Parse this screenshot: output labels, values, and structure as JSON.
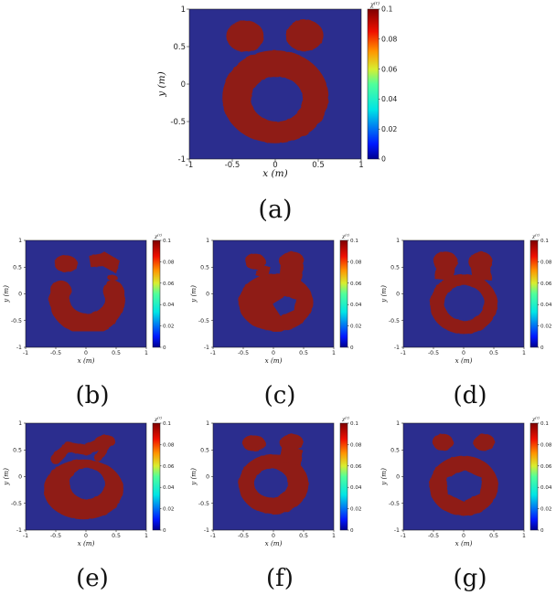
{
  "figure": {
    "background": "#ffffff",
    "colors": {
      "field": "#2b2d8e",
      "object": "#8f1e16",
      "text": "#1a1a1a"
    },
    "colormap": "jet",
    "colormap_stops": [
      [
        0,
        "#00008f"
      ],
      [
        0.1,
        "#0018ff"
      ],
      [
        0.33,
        "#00e5e5"
      ],
      [
        0.5,
        "#50ff9b"
      ],
      [
        0.6,
        "#d8ee30"
      ],
      [
        0.72,
        "#ff9400"
      ],
      [
        0.85,
        "#f01000"
      ],
      [
        1,
        "#7f0000"
      ]
    ]
  },
  "chart_data": [
    {
      "id": "a",
      "type": "heatmap",
      "caption": "(a)",
      "xlabel": "x (m)",
      "ylabel": "y (m)",
      "xlim": [
        -1,
        1
      ],
      "ylim": [
        -1,
        1
      ],
      "xticks": [
        "-1",
        "-0.5",
        "0",
        "0.5",
        "1"
      ],
      "yticks": [
        "1",
        "0.5",
        "0",
        "-0.5",
        "-1"
      ],
      "colorbar": {
        "label_base": "χ",
        "label_sup": "(r)",
        "ticks": [
          "0",
          "0.02",
          "0.04",
          "0.06",
          "0.08",
          "0.1"
        ],
        "min": 0,
        "max": 0.1
      },
      "field_value": 0,
      "object_value": 0.1,
      "shapes": [
        {
          "t": "annulus",
          "cx": 0,
          "cy": -0.17,
          "rox": 0.62,
          "roy": 0.62,
          "hx": 0.02,
          "hy": -0.2,
          "rix": 0.3,
          "riy": 0.3
        },
        {
          "t": "ellipse",
          "cx": -0.35,
          "cy": 0.64,
          "rx": 0.22,
          "ry": 0.21
        },
        {
          "t": "ellipse",
          "cx": 0.34,
          "cy": 0.65,
          "rx": 0.22,
          "ry": 0.21
        }
      ]
    },
    {
      "id": "b",
      "type": "heatmap",
      "caption": "(b)",
      "xlabel": "x (m)",
      "ylabel": "y (m)",
      "xlim": [
        -1,
        1
      ],
      "ylim": [
        -1,
        1
      ],
      "xticks": [
        "-1",
        "-0.5",
        "0",
        "0.5",
        "1"
      ],
      "yticks": [
        "1",
        "0.5",
        "0",
        "-0.5",
        "-1"
      ],
      "colorbar": {
        "label_base": "χ",
        "label_sup": "(r)",
        "ticks": [
          "0",
          "0.02",
          "0.04",
          "0.06",
          "0.08",
          "0.1"
        ],
        "min": 0,
        "max": 0.1
      },
      "field_value": 0,
      "object_value": 0.1,
      "shapes": [
        {
          "t": "ringArc",
          "cx": 0.02,
          "cy": -0.1,
          "r": 0.46,
          "a0": 160,
          "a1": 20,
          "w": 0.34,
          "large": 1,
          "sweep": 0
        },
        {
          "t": "ellipse",
          "cx": -0.33,
          "cy": 0.56,
          "rx": 0.19,
          "ry": 0.16
        },
        {
          "t": "poly",
          "pts": [
            [
              0.05,
              0.72
            ],
            [
              0.32,
              0.78
            ],
            [
              0.56,
              0.62
            ],
            [
              0.5,
              0.38
            ],
            [
              0.28,
              0.52
            ],
            [
              0.08,
              0.5
            ]
          ]
        },
        {
          "t": "ellipse",
          "cx": 0.44,
          "cy": 0.3,
          "rx": 0.08,
          "ry": 0.06
        }
      ]
    },
    {
      "id": "c",
      "type": "heatmap",
      "caption": "(c)",
      "xlabel": "x (m)",
      "ylabel": "y (m)",
      "xlim": [
        -1,
        1
      ],
      "ylim": [
        -1,
        1
      ],
      "xticks": [
        "-1",
        "-0.5",
        "0",
        "0.5",
        "1"
      ],
      "yticks": [
        "1",
        "0.5",
        "0",
        "-0.5",
        "-1"
      ],
      "colorbar": {
        "label_base": "χ",
        "label_sup": "(r)",
        "ticks": [
          "0",
          "0.02",
          "0.04",
          "0.06",
          "0.08",
          "0.1"
        ],
        "min": 0,
        "max": 0.1
      },
      "field_value": 0,
      "object_value": 0.1,
      "shapes": [
        {
          "t": "ellipse",
          "cx": 0.04,
          "cy": -0.16,
          "rx": 0.62,
          "ry": 0.54
        },
        {
          "t": "ellipse",
          "cx": -0.3,
          "cy": 0.6,
          "rx": 0.17,
          "ry": 0.15
        },
        {
          "t": "ellipse",
          "cx": 0.3,
          "cy": 0.62,
          "rx": 0.21,
          "ry": 0.17
        },
        {
          "t": "poly",
          "pts": [
            [
              0.12,
              0.55
            ],
            [
              0.5,
              0.55
            ],
            [
              0.45,
              0.2
            ],
            [
              0.1,
              0.3
            ]
          ]
        },
        {
          "t": "poly",
          "pts": [
            [
              -0.22,
              0.55
            ],
            [
              -0.05,
              0.5
            ],
            [
              -0.1,
              0.28
            ],
            [
              -0.3,
              0.35
            ]
          ]
        },
        {
          "t": "hole",
          "pts": [
            [
              -0.02,
              -0.18
            ],
            [
              0.18,
              -0.04
            ],
            [
              0.38,
              -0.1
            ],
            [
              0.35,
              -0.3
            ],
            [
              0.12,
              -0.42
            ]
          ]
        }
      ]
    },
    {
      "id": "d",
      "type": "heatmap",
      "caption": "(d)",
      "xlabel": "x (m)",
      "ylabel": "y (m)",
      "xlim": [
        -1,
        1
      ],
      "ylim": [
        -1,
        1
      ],
      "xticks": [
        "-1",
        "-0.5",
        "0",
        "0.5",
        "1"
      ],
      "yticks": [
        "1",
        "0.5",
        "0",
        "-0.5",
        "-1"
      ],
      "colorbar": {
        "label_base": "χ",
        "label_sup": "(r)",
        "ticks": [
          "0",
          "0.02",
          "0.04",
          "0.06",
          "0.08",
          "0.1"
        ],
        "min": 0,
        "max": 0.1
      },
      "field_value": 0,
      "object_value": 0.1,
      "shapes": [
        {
          "t": "annulus",
          "cx": 0,
          "cy": -0.19,
          "rox": 0.56,
          "roy": 0.56,
          "hx": 0.01,
          "hy": -0.17,
          "rix": 0.33,
          "riy": 0.33
        },
        {
          "t": "ellipse",
          "cx": -0.3,
          "cy": 0.6,
          "rx": 0.2,
          "ry": 0.19
        },
        {
          "t": "ellipse",
          "cx": 0.28,
          "cy": 0.6,
          "rx": 0.2,
          "ry": 0.19
        },
        {
          "t": "poly",
          "pts": [
            [
              -0.45,
              0.5
            ],
            [
              -0.14,
              0.5
            ],
            [
              -0.18,
              0.25
            ],
            [
              -0.48,
              0.28
            ]
          ]
        },
        {
          "t": "poly",
          "pts": [
            [
              0.12,
              0.5
            ],
            [
              0.44,
              0.5
            ],
            [
              0.47,
              0.25
            ],
            [
              0.15,
              0.25
            ]
          ]
        }
      ]
    },
    {
      "id": "e",
      "type": "heatmap",
      "caption": "(e)",
      "xlabel": "x (m)",
      "ylabel": "y (m)",
      "xlim": [
        -1,
        1
      ],
      "ylim": [
        -1,
        1
      ],
      "xticks": [
        "-1",
        "-0.5",
        "0",
        "0.5",
        "1"
      ],
      "yticks": [
        "1",
        "0.5",
        "0",
        "-0.5",
        "-1"
      ],
      "colorbar": {
        "label_base": "χ",
        "label_sup": "(r)",
        "ticks": [
          "0",
          "0.02",
          "0.04",
          "0.06",
          "0.08",
          "0.1"
        ],
        "min": 0,
        "max": 0.1
      },
      "field_value": 0,
      "object_value": 0.1,
      "shapes": [
        {
          "t": "annulus",
          "cx": -0.04,
          "cy": -0.24,
          "rox": 0.66,
          "roy": 0.56,
          "hx": 0.02,
          "hy": -0.13,
          "rix": 0.29,
          "riy": 0.29
        },
        {
          "t": "line",
          "pts": [
            [
              -0.5,
              0.33
            ],
            [
              -0.3,
              0.56
            ],
            [
              0.0,
              0.5
            ],
            [
              0.3,
              0.66
            ]
          ],
          "w": 0.17
        },
        {
          "t": "ellipse",
          "cx": 0.31,
          "cy": 0.66,
          "rx": 0.18,
          "ry": 0.12
        },
        {
          "t": "line",
          "pts": [
            [
              0.33,
              0.58
            ],
            [
              0.2,
              0.36
            ]
          ],
          "w": 0.13
        }
      ]
    },
    {
      "id": "f",
      "type": "heatmap",
      "caption": "(f)",
      "xlabel": "x (m)",
      "ylabel": "y (m)",
      "xlim": [
        -1,
        1
      ],
      "ylim": [
        -1,
        1
      ],
      "xticks": [
        "-1",
        "-0.5",
        "0",
        "0.5",
        "1"
      ],
      "yticks": [
        "1",
        "0.5",
        "0",
        "-0.5",
        "-1"
      ],
      "colorbar": {
        "label_base": "χ",
        "label_sup": "(r)",
        "ticks": [
          "0",
          "0.02",
          "0.04",
          "0.06",
          "0.08",
          "0.1"
        ],
        "min": 0,
        "max": 0.1
      },
      "field_value": 0,
      "object_value": 0.1,
      "shapes": [
        {
          "t": "annulus",
          "cx": 0,
          "cy": -0.14,
          "rox": 0.58,
          "roy": 0.56,
          "hx": -0.04,
          "hy": -0.12,
          "rix": 0.28,
          "riy": 0.27
        },
        {
          "t": "ellipse",
          "cx": -0.32,
          "cy": 0.62,
          "rx": 0.19,
          "ry": 0.15
        },
        {
          "t": "ellipse",
          "cx": 0.3,
          "cy": 0.64,
          "rx": 0.2,
          "ry": 0.16
        },
        {
          "t": "poly",
          "pts": [
            [
              0.14,
              0.55
            ],
            [
              0.48,
              0.5
            ],
            [
              0.45,
              0.2
            ],
            [
              0.1,
              0.3
            ]
          ]
        }
      ]
    },
    {
      "id": "g",
      "type": "heatmap",
      "caption": "(g)",
      "xlabel": "x (m)",
      "ylabel": "y (m)",
      "xlim": [
        -1,
        1
      ],
      "ylim": [
        -1,
        1
      ],
      "xticks": [
        "-1",
        "-0.5",
        "0",
        "0.5",
        "1"
      ],
      "yticks": [
        "1",
        "0.5",
        "0",
        "-0.5",
        "-1"
      ],
      "colorbar": {
        "label_base": "χ",
        "label_sup": "(r)",
        "ticks": [
          "0",
          "0.02",
          "0.04",
          "0.06",
          "0.08",
          "0.1"
        ],
        "min": 0,
        "max": 0.1
      },
      "field_value": 0,
      "object_value": 0.1,
      "shapes": [
        {
          "t": "ellipse",
          "cx": 0,
          "cy": -0.17,
          "rx": 0.57,
          "ry": 0.56
        },
        {
          "t": "ellipse",
          "cx": -0.34,
          "cy": 0.64,
          "rx": 0.17,
          "ry": 0.16
        },
        {
          "t": "ellipse",
          "cx": 0.34,
          "cy": 0.64,
          "rx": 0.18,
          "ry": 0.16
        },
        {
          "t": "hole",
          "pts": [
            [
              -0.28,
              -0.02
            ],
            [
              0.02,
              0.12
            ],
            [
              0.3,
              -0.02
            ],
            [
              0.27,
              -0.32
            ],
            [
              0.0,
              -0.46
            ],
            [
              -0.27,
              -0.32
            ]
          ]
        }
      ]
    }
  ]
}
